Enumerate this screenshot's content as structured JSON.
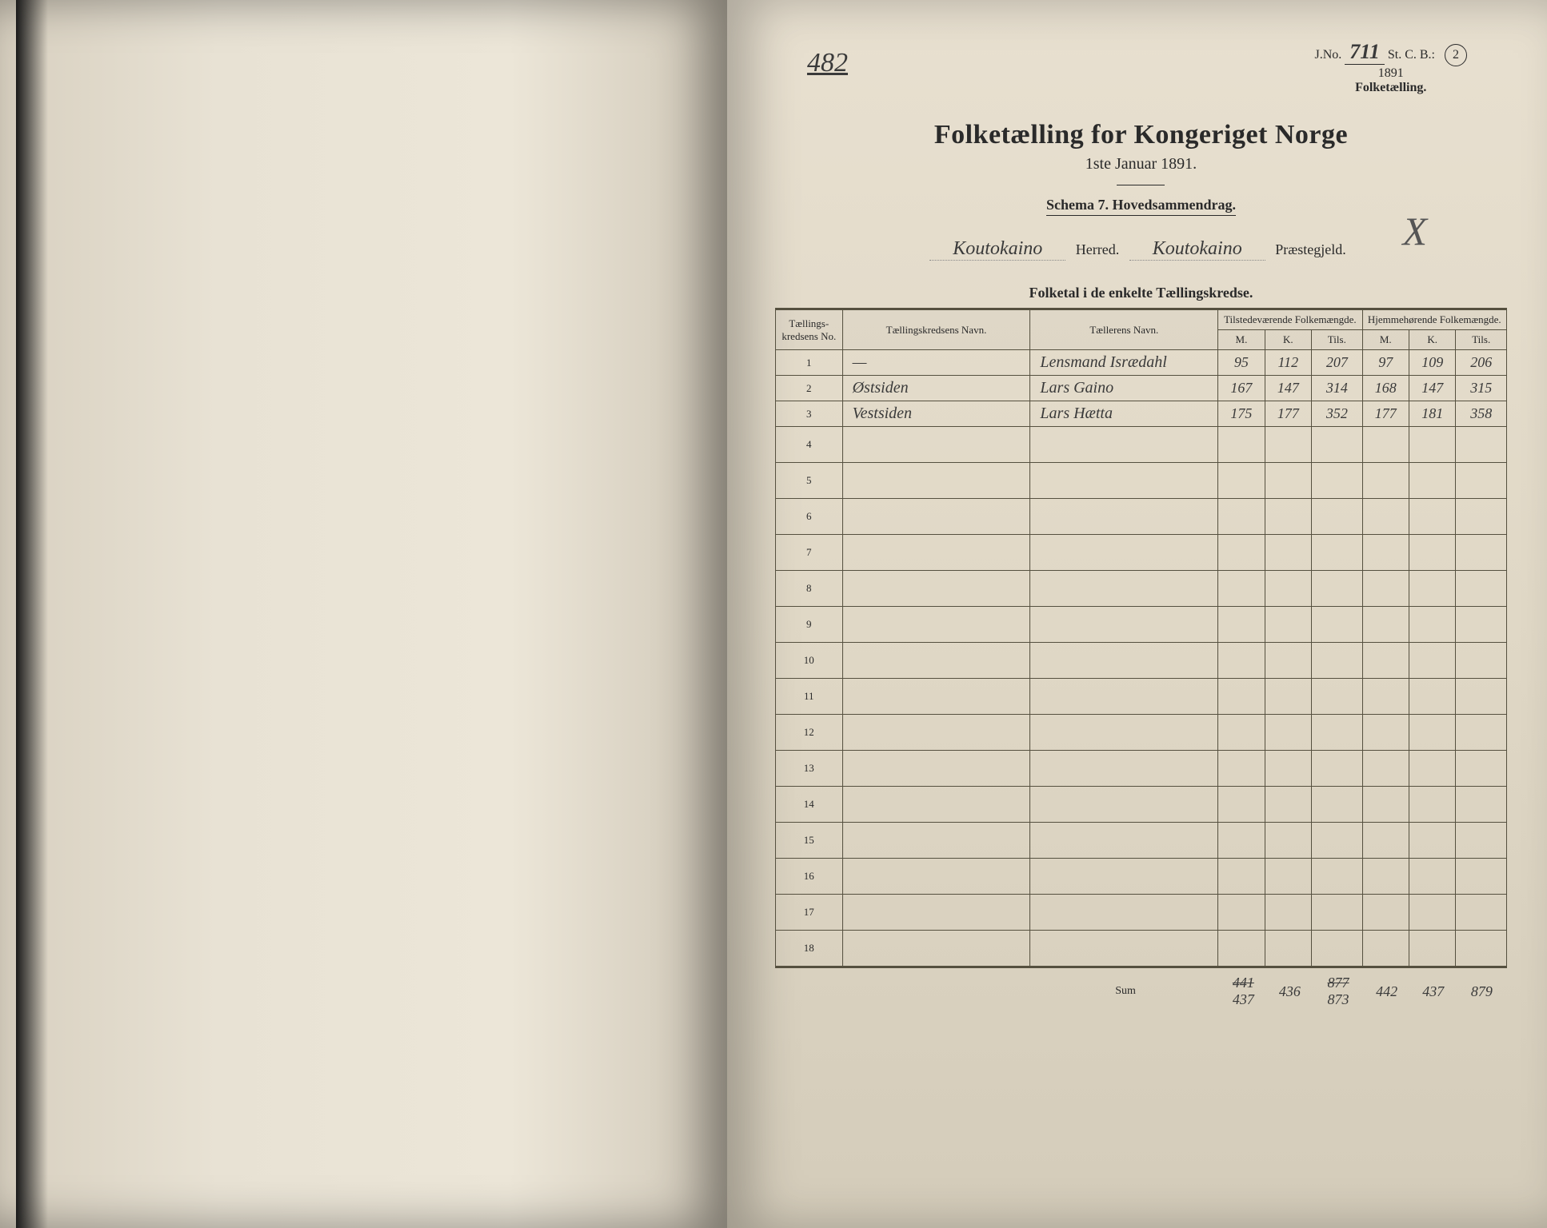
{
  "topnote": "482",
  "jno": {
    "label_pre": "J.No.",
    "num": "711",
    "label_post": "St. C. B.:",
    "year": "1891",
    "tag": "Folketælling.",
    "circled": "2"
  },
  "title": {
    "main": "Folketælling for Kongeriget Norge",
    "sub": "1ste Januar 1891."
  },
  "schema": "Schema 7.  Hovedsammendrag.",
  "xmark": "X",
  "locality": {
    "herred_value": "Koutokaino",
    "herred_label": "Herred.",
    "praeste_value": "Koutokaino",
    "praeste_label": "Præstegjeld."
  },
  "section_title": "Folketal i de enkelte Tællingskredse.",
  "headers": {
    "no": "Tællings-\nkredsens No.",
    "navn": "Tællingskredsens Navn.",
    "teller": "Tællerens Navn.",
    "present": "Tilstedeværende\nFolkemængde.",
    "resident": "Hjemmehørende\nFolkemængde.",
    "m": "M.",
    "k": "K.",
    "tils": "Tils."
  },
  "rows": [
    {
      "no": "1",
      "navn": "—",
      "teller": "Lensmand Isrædahl",
      "pm": "95",
      "pk": "112",
      "pt": "207",
      "rm": "97",
      "rk": "109",
      "rt": "206"
    },
    {
      "no": "2",
      "navn": "Østsiden",
      "teller": "Lars Gaino",
      "pm": "167",
      "pk": "147",
      "pt": "314",
      "rm": "168",
      "rk": "147",
      "rt": "315"
    },
    {
      "no": "3",
      "navn": "Vestsiden",
      "teller": "Lars Hætta",
      "pm": "175",
      "pk": "177",
      "pt": "352",
      "rm": "177",
      "rk": "181",
      "rt": "358"
    }
  ],
  "empty_rows": [
    "4",
    "5",
    "6",
    "7",
    "8",
    "9",
    "10",
    "11",
    "12",
    "13",
    "14",
    "15",
    "16",
    "17",
    "18"
  ],
  "sum": {
    "label": "Sum",
    "pm_strike": "441",
    "pm": "437",
    "pk": "436",
    "pt_strike": "877",
    "pt": "873",
    "rm": "442",
    "rk": "437",
    "rt": "879"
  },
  "colors": {
    "page_bg": "#e0d8c6",
    "ink": "#2a2a2a",
    "rule": "#55503f"
  }
}
